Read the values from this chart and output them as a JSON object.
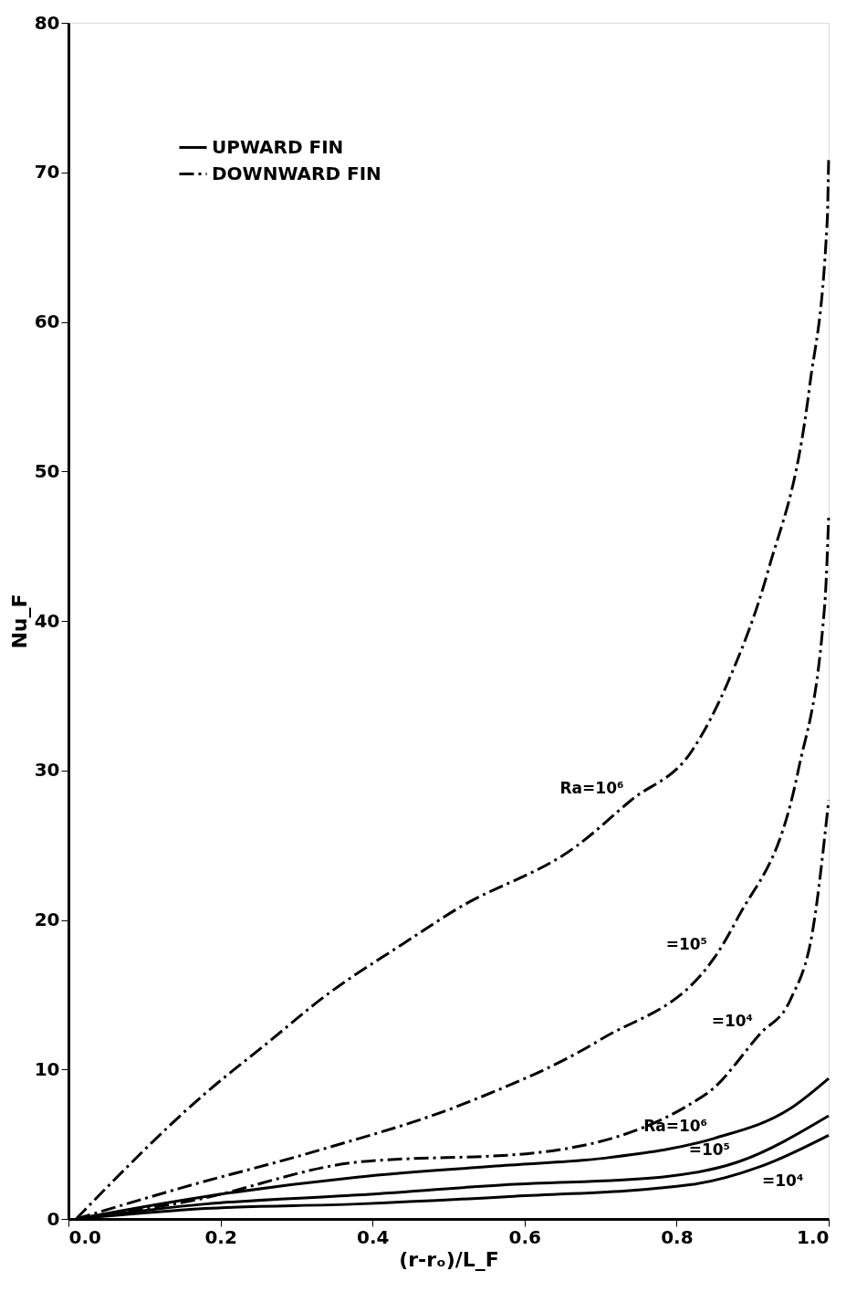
{
  "chart_data": {
    "type": "line",
    "xlabel": "(r-rₒ)/L_F",
    "ylabel": "Nu_F",
    "xlim": [
      0,
      1
    ],
    "ylim": [
      0,
      80
    ],
    "xticks": [
      {
        "value": 0,
        "label": "0.0"
      },
      {
        "value": 0.2,
        "label": "0.2"
      },
      {
        "value": 0.4,
        "label": "0.4"
      },
      {
        "value": 0.6,
        "label": "0.6"
      },
      {
        "value": 0.8,
        "label": "0.8"
      },
      {
        "value": 1,
        "label": "1.0"
      }
    ],
    "yticks": [
      0,
      10,
      20,
      30,
      40,
      50,
      60,
      70,
      80
    ],
    "grid": false,
    "legend": "top left",
    "marker": "none",
    "series": [
      {
        "name": "UPWARD FIN",
        "color": "#000000",
        "line_style": "solid",
        "x": [
          0.01,
          0.18,
          0.38,
          0.58,
          0.71,
          0.85,
          0.95,
          1.0,
          null,
          0.01,
          0.18,
          0.38,
          0.58,
          0.78,
          0.88,
          1.0,
          null,
          0.01,
          0.18,
          0.38,
          0.58,
          0.82,
          0.91,
          1.0
        ],
        "values": [
          0,
          1.5,
          2.8,
          3.6,
          4.1,
          5.4,
          7.4,
          9.4,
          null,
          0,
          1.0,
          1.6,
          2.3,
          2.8,
          3.8,
          6.9,
          null,
          0,
          0.7,
          1.0,
          1.5,
          2.3,
          3.5,
          5.6
        ]
      },
      {
        "name": "DOWNWARD FIN",
        "color": "#000000",
        "line_style": "dashed",
        "x": [
          0.01,
          0.18,
          0.26,
          0.34,
          0.44,
          0.51,
          0.67,
          0.74,
          0.82,
          0.87,
          0.92,
          0.975,
          0.998,
          1.0,
          null,
          0.01,
          0.15,
          0.33,
          0.52,
          0.7,
          0.85,
          0.88,
          0.96,
          0.995,
          1.0,
          null,
          0.01,
          0.16,
          0.38,
          0.61,
          0.84,
          0.91,
          0.95,
          0.98,
          1.0
        ],
        "values": [
          0,
          8.4,
          11.7,
          15.0,
          18.4,
          20.7,
          25.0,
          28.0,
          31.3,
          36.2,
          43.3,
          55.7,
          66.7,
          71,
          null,
          0,
          2.1,
          4.6,
          7.7,
          12.0,
          17.5,
          20.1,
          30.0,
          41.2,
          47,
          null,
          0,
          1.2,
          3.8,
          4.4,
          8.4,
          12.4,
          14.7,
          19.6,
          28
        ]
      }
    ],
    "annotations": [
      {
        "text": "Ra=10⁶",
        "x": 0.74,
        "y": 28.0
      },
      {
        "text": "=10⁵",
        "x": 0.85,
        "y": 17.5
      },
      {
        "text": "=10⁴",
        "x": 0.91,
        "y": 12.4
      },
      {
        "text": "Ra=10⁶",
        "x": 0.85,
        "y": 5.4
      },
      {
        "text": "=10⁵",
        "x": 0.88,
        "y": 3.8
      },
      {
        "text": "=10⁴",
        "x": 0.91,
        "y": 3.5
      }
    ]
  }
}
